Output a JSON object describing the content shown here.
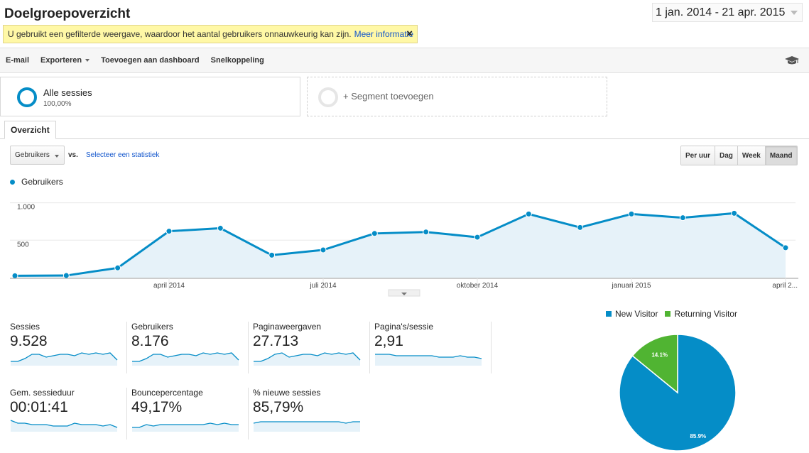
{
  "header": {
    "title": "Doelgroepoverzicht",
    "date_range": "1 jan. 2014 - 21 apr. 2015"
  },
  "notice": {
    "text": "U gebruikt een gefilterde weergave, waardoor het aantal gebruikers onnauwkeurig kan zijn.",
    "link": "Meer informatie",
    "close": "×"
  },
  "toolbar": {
    "email": "E-mail",
    "export": "Exporteren",
    "add_dashboard": "Toevoegen aan dashboard",
    "shortcut": "Snelkoppeling"
  },
  "segments": {
    "active_name": "Alle sessies",
    "active_pct": "100,00%",
    "add_label": "+ Segment toevoegen"
  },
  "tabs": {
    "overview": "Overzicht"
  },
  "controls": {
    "metric": "Gebruikers",
    "vs": "vs.",
    "select_stat": "Selecteer een statistiek",
    "periods": [
      "Per uur",
      "Dag",
      "Week",
      "Maand"
    ],
    "active_period": "Maand"
  },
  "chart_data": {
    "type": "line",
    "legend": "Gebruikers",
    "y_ticks": [
      "1.000",
      "500"
    ],
    "y_tick_values": [
      1000,
      500
    ],
    "x_tick_labels": [
      "april 2014",
      "juli 2014",
      "oktober 2014",
      "januari 2015",
      "april 2..."
    ],
    "x_tick_month_index": [
      3,
      6,
      9,
      12,
      15
    ],
    "x": [
      "jan 2014",
      "feb 2014",
      "mrt 2014",
      "apr 2014",
      "mei 2014",
      "jun 2014",
      "jul 2014",
      "aug 2014",
      "sep 2014",
      "okt 2014",
      "nov 2014",
      "dec 2014",
      "jan 2015",
      "feb 2015",
      "mrt 2015",
      "apr 2015"
    ],
    "series": [
      {
        "name": "Gebruikers",
        "values": [
          25,
          28,
          130,
          620,
          660,
          300,
          370,
          590,
          610,
          540,
          850,
          670,
          850,
          800,
          860,
          400
        ]
      }
    ],
    "ylim": [
      0,
      1110
    ],
    "color": "#058dc7"
  },
  "scorecards": [
    {
      "label": "Sessies",
      "value": "9.528",
      "spark": [
        3,
        3,
        5,
        8,
        8,
        6,
        7,
        8,
        8,
        7,
        9,
        8,
        9,
        8,
        9,
        4
      ]
    },
    {
      "label": "Gebruikers",
      "value": "8.176",
      "spark": [
        3,
        3,
        5,
        8,
        8,
        6,
        7,
        8,
        8,
        7,
        9,
        8,
        9,
        8,
        9,
        4
      ]
    },
    {
      "label": "Paginaweergaven",
      "value": "27.713",
      "spark": [
        3,
        3,
        5,
        8,
        9,
        6,
        7,
        8,
        8,
        7,
        9,
        8,
        9,
        8,
        9,
        4
      ]
    },
    {
      "label": "Pagina's/sessie",
      "value": "2,91",
      "spark": [
        8,
        8,
        8,
        7,
        7,
        7,
        7,
        7,
        7,
        6,
        6,
        6,
        7,
        6,
        6,
        5
      ]
    },
    {
      "label": "Gem. sessieduur",
      "value": "00:01:41",
      "spark": [
        8,
        6,
        6,
        5,
        5,
        5,
        4,
        4,
        4,
        6,
        5,
        5,
        5,
        4,
        5,
        3
      ]
    },
    {
      "label": "Bouncepercentage",
      "value": "49,17%",
      "spark": [
        3,
        3,
        5,
        4,
        5,
        5,
        5,
        5,
        5,
        5,
        5,
        6,
        5,
        6,
        5,
        5
      ]
    },
    {
      "label": "% nieuwe sessies",
      "value": "85,79%",
      "spark": [
        6,
        7,
        7,
        7,
        7,
        7,
        7,
        7,
        7,
        7,
        7,
        7,
        7,
        6,
        7,
        7
      ]
    }
  ],
  "pie": {
    "legend": [
      {
        "name": "New Visitor",
        "color": "#058dc7"
      },
      {
        "name": "Returning Visitor",
        "color": "#50b432"
      }
    ],
    "slices": [
      {
        "name": "New Visitor",
        "value": 85.9,
        "label": "85.9%"
      },
      {
        "name": "Returning Visitor",
        "value": 14.1,
        "label": "14.1%"
      }
    ]
  }
}
